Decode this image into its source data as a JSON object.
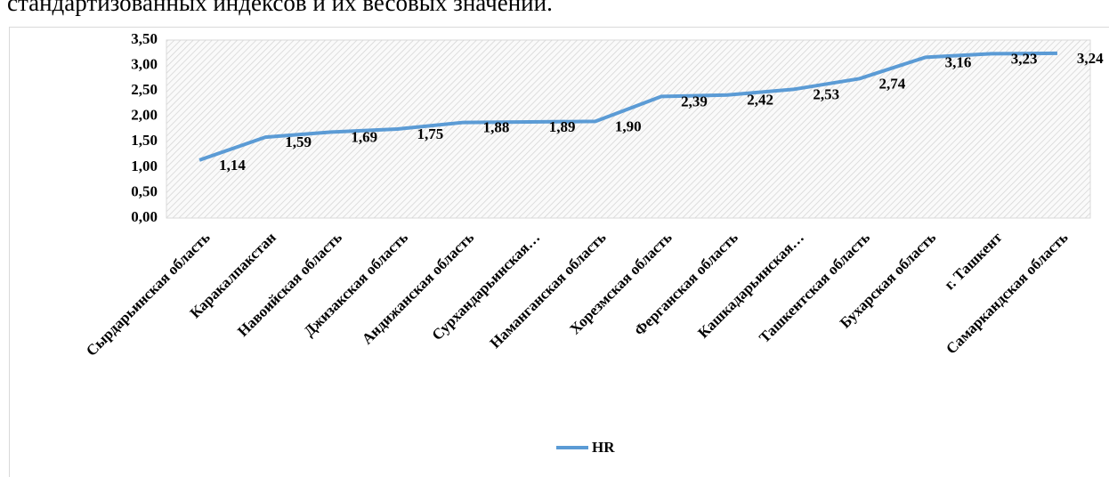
{
  "page_text": "стандартизованных индексов и их весовых значений.",
  "chart_data": {
    "type": "line",
    "categories": [
      "Сырдарьинская область",
      "Каракалпакстан",
      "Навоийская область",
      "Джизакская область",
      "Андижанская область",
      "Сурхандарьинская…",
      "Наманганская область",
      "Хорезмская область",
      "Ферганская область",
      "Кашкадарьинская…",
      "Ташкентская область",
      "Бухарская область",
      "г. Ташкент",
      "Самаркандская область"
    ],
    "series": [
      {
        "name": "HR",
        "color": "#5b9bd5",
        "values": [
          1.14,
          1.59,
          1.69,
          1.75,
          1.88,
          1.89,
          1.9,
          2.39,
          2.42,
          2.53,
          2.74,
          3.16,
          3.23,
          3.24
        ],
        "value_labels": [
          "1,14",
          "1,59",
          "1,69",
          "1,75",
          "1,88",
          "1,89",
          "1,90",
          "2,39",
          "2,42",
          "2,53",
          "2,74",
          "3,16",
          "3,23",
          "3,24"
        ]
      }
    ],
    "ylim": [
      0,
      3.5
    ],
    "yticks": [
      {
        "value": 0,
        "label": "0,00"
      },
      {
        "value": 0.5,
        "label": "0,50"
      },
      {
        "value": 1,
        "label": "1,00"
      },
      {
        "value": 1.5,
        "label": "1,50"
      },
      {
        "value": 2,
        "label": "2,00"
      },
      {
        "value": 2.5,
        "label": "2,50"
      },
      {
        "value": 3,
        "label": "3,00"
      },
      {
        "value": 3.5,
        "label": "3,50"
      }
    ],
    "grid": false,
    "legend": "bottom"
  }
}
